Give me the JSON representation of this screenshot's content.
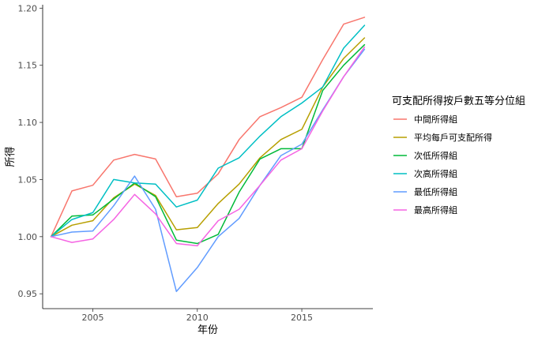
{
  "chart_data": {
    "type": "line",
    "xlabel": "年份",
    "ylabel": "所得",
    "xlim": [
      2002.6,
      2018.4
    ],
    "ylim": [
      0.937,
      1.203
    ],
    "x_ticks": [
      2005,
      2010,
      2015
    ],
    "y_ticks": [
      0.95,
      1.0,
      1.05,
      1.1,
      1.15,
      1.2
    ],
    "y_tick_labels": [
      "0.95",
      "1.00",
      "1.05",
      "1.10",
      "1.15",
      "1.20"
    ],
    "x": [
      2003,
      2004,
      2005,
      2006,
      2007,
      2008,
      2009,
      2010,
      2011,
      2012,
      2013,
      2014,
      2015,
      2016,
      2017,
      2018
    ],
    "grid": false,
    "legend_title": "可支配所得按戶數五等分位組",
    "legend_position": "right",
    "series": [
      {
        "name": "中間所得組",
        "color": "#F8766D",
        "values": [
          1.0,
          1.04,
          1.045,
          1.067,
          1.072,
          1.068,
          1.035,
          1.038,
          1.055,
          1.085,
          1.105,
          1.113,
          1.122,
          1.155,
          1.186,
          1.192
        ]
      },
      {
        "name": "平均每戶可支配所得",
        "color": "#B79F00",
        "values": [
          1.0,
          1.01,
          1.014,
          1.034,
          1.046,
          1.036,
          1.006,
          1.008,
          1.029,
          1.046,
          1.069,
          1.085,
          1.094,
          1.131,
          1.156,
          1.174
        ]
      },
      {
        "name": "次低所得組",
        "color": "#00BA38",
        "values": [
          1.0,
          1.018,
          1.019,
          1.033,
          1.047,
          1.035,
          0.997,
          0.994,
          1.002,
          1.039,
          1.068,
          1.077,
          1.077,
          1.128,
          1.15,
          1.168
        ]
      },
      {
        "name": "次高所得組",
        "color": "#00BFC4",
        "values": [
          1.0,
          1.015,
          1.021,
          1.05,
          1.047,
          1.046,
          1.026,
          1.032,
          1.06,
          1.069,
          1.088,
          1.105,
          1.117,
          1.131,
          1.165,
          1.185
        ]
      },
      {
        "name": "最低所得組",
        "color": "#619CFF",
        "values": [
          1.0,
          1.004,
          1.005,
          1.027,
          1.053,
          1.024,
          0.952,
          0.973,
          1.0,
          1.016,
          1.045,
          1.071,
          1.081,
          1.111,
          1.14,
          1.164
        ]
      },
      {
        "name": "最高所得組",
        "color": "#F564E3",
        "values": [
          1.0,
          0.995,
          0.998,
          1.015,
          1.037,
          1.02,
          0.994,
          0.992,
          1.014,
          1.024,
          1.045,
          1.067,
          1.077,
          1.11,
          1.14,
          1.166
        ]
      }
    ]
  }
}
